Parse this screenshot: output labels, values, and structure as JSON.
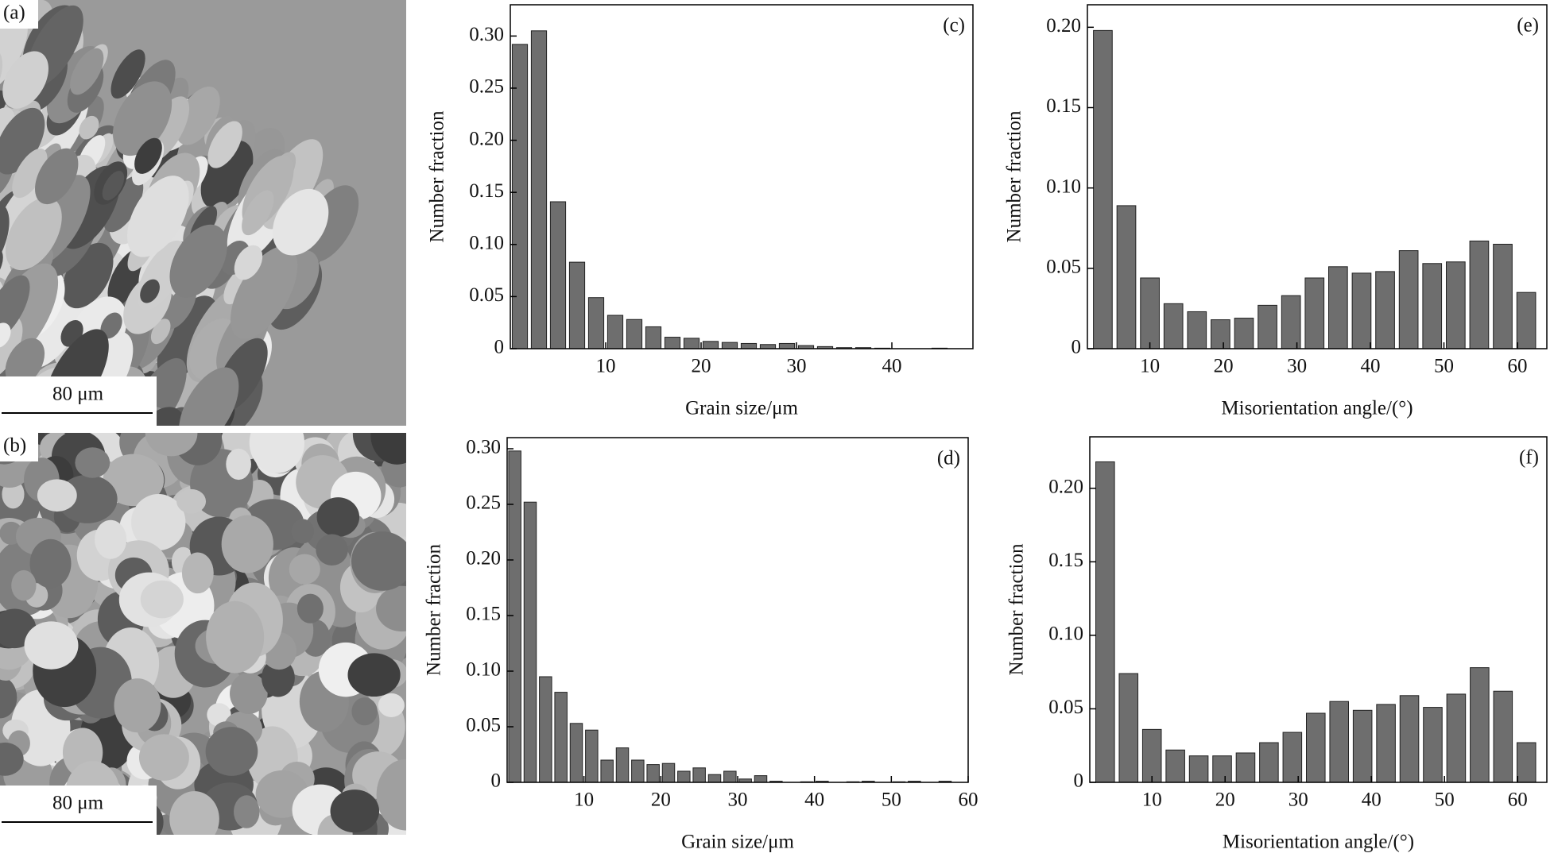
{
  "micrographs": [
    {
      "label": "(a)",
      "scale_bar": "80 μm"
    },
    {
      "label": "(b)",
      "scale_bar": "80 μm"
    }
  ],
  "chart_data": [
    {
      "type": "histogram",
      "panel_label": "(c)",
      "x_label": "Grain size/μm",
      "y_label": "Number fraction",
      "color": "#6e6e6e",
      "bins": [
        0,
        2,
        4,
        6,
        8,
        10,
        12,
        14,
        16,
        18,
        20,
        22,
        24,
        26,
        28,
        30,
        32,
        34,
        36,
        38,
        40,
        42,
        44,
        46,
        48
      ],
      "values": [
        0.292,
        0.305,
        0.141,
        0.083,
        0.049,
        0.032,
        0.028,
        0.021,
        0.011,
        0.01,
        0.007,
        0.006,
        0.005,
        0.004,
        0.005,
        0.003,
        0.002,
        0.001,
        0.001,
        0.0005,
        0,
        0,
        0.0005,
        0
      ],
      "xlim": [
        0,
        48.5
      ],
      "xticks": [
        10,
        20,
        30,
        40
      ],
      "ylim": [
        0,
        0.33
      ],
      "yticks": [
        0,
        0.05,
        {
          "value": 0.1,
          "label": "0.10"
        },
        0.15,
        {
          "value": 0.2,
          "label": "0.20"
        },
        0.25,
        {
          "value": 0.3,
          "label": "0.30"
        }
      ]
    },
    {
      "type": "histogram",
      "panel_label": "(d)",
      "x_label": "Grain size/μm",
      "y_label": "Number fraction",
      "color": "#6e6e6e",
      "bins": [
        0,
        2,
        4,
        6,
        8,
        10,
        12,
        14,
        16,
        18,
        20,
        22,
        24,
        26,
        28,
        30,
        32,
        34,
        36,
        38,
        40,
        42,
        44,
        46,
        48,
        50,
        52,
        54,
        56,
        58,
        60
      ],
      "values": [
        0.298,
        0.252,
        0.095,
        0.081,
        0.053,
        0.047,
        0.02,
        0.031,
        0.02,
        0.016,
        0.017,
        0.01,
        0.013,
        0.007,
        0.01,
        0.003,
        0.006,
        0.001,
        0,
        0.0005,
        0.001,
        0,
        0.0005,
        0.001,
        0,
        0.0005,
        0.001,
        0,
        0.001,
        0
      ],
      "xlim": [
        0,
        60
      ],
      "xticks": [
        10,
        20,
        30,
        40,
        50,
        60
      ],
      "ylim": [
        0,
        0.31
      ],
      "yticks": [
        0,
        0.05,
        {
          "value": 0.1,
          "label": "0.10"
        },
        0.15,
        {
          "value": 0.2,
          "label": "0.20"
        },
        0.25,
        {
          "value": 0.3,
          "label": "0.30"
        }
      ]
    },
    {
      "type": "histogram",
      "panel_label": "(e)",
      "x_label": "Misorientation angle/(°)",
      "y_label": "Number fraction",
      "color": "#6e6e6e",
      "bins": [
        2,
        5.2,
        8.4,
        11.6,
        14.8,
        18,
        21.2,
        24.4,
        27.6,
        30.8,
        34,
        37.2,
        40.4,
        43.6,
        46.8,
        50,
        53.2,
        56.4,
        59.6,
        62.8
      ],
      "values": [
        0.198,
        0.089,
        0.044,
        0.028,
        0.023,
        0.018,
        0.019,
        0.027,
        0.033,
        0.044,
        0.051,
        0.047,
        0.048,
        0.061,
        0.053,
        0.054,
        0.067,
        0.065,
        0.035
      ],
      "xlim": [
        1.5,
        64
      ],
      "xticks": [
        10,
        20,
        30,
        40,
        50,
        60
      ],
      "ylim": [
        0,
        0.214
      ],
      "yticks": [
        0,
        0.05,
        {
          "value": 0.1,
          "label": "0.10"
        },
        0.15,
        {
          "value": 0.2,
          "label": "0.20"
        }
      ]
    },
    {
      "type": "histogram",
      "panel_label": "(f)",
      "x_label": "Misorientation angle/(°)",
      "y_label": "Number fraction",
      "color": "#6e6e6e",
      "bins": [
        2,
        5.2,
        8.4,
        11.6,
        14.8,
        18,
        21.2,
        24.4,
        27.6,
        30.8,
        34,
        37.2,
        40.4,
        43.6,
        46.8,
        50,
        53.2,
        56.4,
        59.6,
        62.8
      ],
      "values": [
        0.218,
        0.074,
        0.036,
        0.022,
        0.018,
        0.018,
        0.02,
        0.027,
        0.034,
        0.047,
        0.055,
        0.049,
        0.053,
        0.059,
        0.051,
        0.06,
        0.078,
        0.062,
        0.027
      ],
      "xlim": [
        1.5,
        64
      ],
      "xticks": [
        10,
        20,
        30,
        40,
        50,
        60
      ],
      "ylim": [
        0,
        0.235
      ],
      "yticks": [
        0,
        0.05,
        {
          "value": 0.1,
          "label": "0.10"
        },
        0.15,
        {
          "value": 0.2,
          "label": "0.20"
        }
      ]
    }
  ]
}
